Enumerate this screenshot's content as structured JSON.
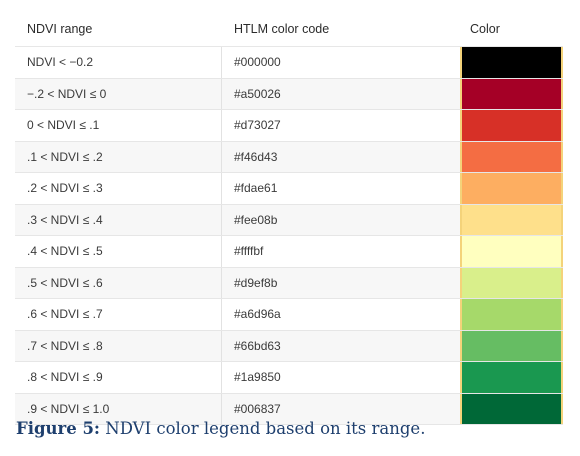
{
  "table": {
    "headers": {
      "range": "NDVI range",
      "code": "HTLM color code",
      "color": "Color"
    },
    "rows": [
      {
        "range": "NDVI < −0.2",
        "code": "#000000",
        "color": "#000000"
      },
      {
        "range": "−.2 < NDVI ≤ 0",
        "code": "#a50026",
        "color": "#a50026"
      },
      {
        "range": "0 < NDVI ≤ .1",
        "code": "#d73027",
        "color": "#d73027"
      },
      {
        "range": ".1 < NDVI ≤ .2",
        "code": "#f46d43",
        "color": "#f46d43"
      },
      {
        "range": ".2 < NDVI ≤ .3",
        "code": "#fdae61",
        "color": "#fdae61"
      },
      {
        "range": ".3 < NDVI ≤ .4",
        "code": "#fee08b",
        "color": "#fee08b"
      },
      {
        "range": ".4 < NDVI ≤ .5",
        "code": "#ffffbf",
        "color": "#ffffbf"
      },
      {
        "range": ".5 < NDVI ≤ .6",
        "code": "#d9ef8b",
        "color": "#d9ef8b"
      },
      {
        "range": ".6 < NDVI ≤ .7",
        "code": "#a6d96a",
        "color": "#a6d96a"
      },
      {
        "range": ".7 < NDVI ≤ .8",
        "code": "#66bd63",
        "color": "#66bd63"
      },
      {
        "range": ".8 < NDVI ≤ .9",
        "code": "#1a9850",
        "color": "#1a9850"
      },
      {
        "range": ".9 < NDVI ≤ 1.0",
        "code": "#006837",
        "color": "#006837"
      }
    ]
  },
  "caption": {
    "label": "Figure 5:",
    "text": " NDVI color legend based on its range."
  }
}
